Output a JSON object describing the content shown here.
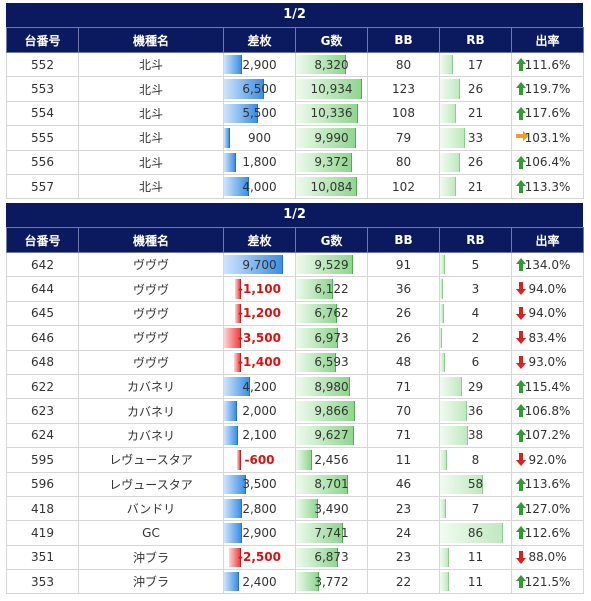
{
  "headers": [
    "台番号",
    "機種名",
    "差枚",
    "G数",
    "BB",
    "RB",
    "出率"
  ],
  "groups": [
    {
      "page_label": "1/2",
      "rows": [
        {
          "num": "552",
          "machine": "北斗",
          "diff": "2,900",
          "diff_v": 2900,
          "games": "8,320",
          "games_v": 8320,
          "bb": "80",
          "rb": "17",
          "rb_v": 17,
          "rate": "111.6%",
          "trend": "up"
        },
        {
          "num": "553",
          "machine": "北斗",
          "diff": "6,500",
          "diff_v": 6500,
          "games": "10,934",
          "games_v": 10934,
          "bb": "123",
          "rb": "26",
          "rb_v": 26,
          "rate": "119.7%",
          "trend": "up"
        },
        {
          "num": "554",
          "machine": "北斗",
          "diff": "5,500",
          "diff_v": 5500,
          "games": "10,336",
          "games_v": 10336,
          "bb": "108",
          "rb": "21",
          "rb_v": 21,
          "rate": "117.6%",
          "trend": "up"
        },
        {
          "num": "555",
          "machine": "北斗",
          "diff": "900",
          "diff_v": 900,
          "games": "9,990",
          "games_v": 9990,
          "bb": "79",
          "rb": "33",
          "rb_v": 33,
          "rate": "103.1%",
          "trend": "flat"
        },
        {
          "num": "556",
          "machine": "北斗",
          "diff": "1,800",
          "diff_v": 1800,
          "games": "9,372",
          "games_v": 9372,
          "bb": "80",
          "rb": "26",
          "rb_v": 26,
          "rate": "106.4%",
          "trend": "up"
        },
        {
          "num": "557",
          "machine": "北斗",
          "diff": "4,000",
          "diff_v": 4000,
          "games": "10,084",
          "games_v": 10084,
          "bb": "102",
          "rb": "21",
          "rb_v": 21,
          "rate": "113.3%",
          "trend": "up"
        }
      ]
    },
    {
      "page_label": "1/2",
      "rows": [
        {
          "num": "642",
          "machine": "ヴヴヴ",
          "diff": "9,700",
          "diff_v": 9700,
          "games": "9,529",
          "games_v": 9529,
          "bb": "91",
          "rb": "5",
          "rb_v": 5,
          "rate": "134.0%",
          "trend": "up"
        },
        {
          "num": "644",
          "machine": "ヴヴヴ",
          "diff": "-1,100",
          "diff_v": -1100,
          "games": "6,122",
          "games_v": 6122,
          "bb": "36",
          "rb": "3",
          "rb_v": 3,
          "rate": "94.0%",
          "trend": "down"
        },
        {
          "num": "645",
          "machine": "ヴヴヴ",
          "diff": "-1,200",
          "diff_v": -1200,
          "games": "6,762",
          "games_v": 6762,
          "bb": "26",
          "rb": "4",
          "rb_v": 4,
          "rate": "94.0%",
          "trend": "down"
        },
        {
          "num": "646",
          "machine": "ヴヴヴ",
          "diff": "-3,500",
          "diff_v": -3500,
          "games": "6,973",
          "games_v": 6973,
          "bb": "26",
          "rb": "2",
          "rb_v": 2,
          "rate": "83.4%",
          "trend": "down"
        },
        {
          "num": "648",
          "machine": "ヴヴヴ",
          "diff": "-1,400",
          "diff_v": -1400,
          "games": "6,593",
          "games_v": 6593,
          "bb": "48",
          "rb": "6",
          "rb_v": 6,
          "rate": "93.0%",
          "trend": "down"
        },
        {
          "num": "622",
          "machine": "カバネリ",
          "diff": "4,200",
          "diff_v": 4200,
          "games": "8,980",
          "games_v": 8980,
          "bb": "71",
          "rb": "29",
          "rb_v": 29,
          "rate": "115.4%",
          "trend": "up"
        },
        {
          "num": "623",
          "machine": "カバネリ",
          "diff": "2,000",
          "diff_v": 2000,
          "games": "9,866",
          "games_v": 9866,
          "bb": "70",
          "rb": "36",
          "rb_v": 36,
          "rate": "106.8%",
          "trend": "up"
        },
        {
          "num": "624",
          "machine": "カバネリ",
          "diff": "2,100",
          "diff_v": 2100,
          "games": "9,627",
          "games_v": 9627,
          "bb": "71",
          "rb": "38",
          "rb_v": 38,
          "rate": "107.2%",
          "trend": "up"
        },
        {
          "num": "595",
          "machine": "レヴュースタア",
          "diff": "-600",
          "diff_v": -600,
          "games": "2,456",
          "games_v": 2456,
          "bb": "11",
          "rb": "8",
          "rb_v": 8,
          "rate": "92.0%",
          "trend": "down"
        },
        {
          "num": "596",
          "machine": "レヴュースタア",
          "diff": "3,500",
          "diff_v": 3500,
          "games": "8,701",
          "games_v": 8701,
          "bb": "46",
          "rb": "58",
          "rb_v": 58,
          "rate": "113.6%",
          "trend": "up"
        },
        {
          "num": "418",
          "machine": "バンドリ",
          "diff": "2,800",
          "diff_v": 2800,
          "games": "3,490",
          "games_v": 3490,
          "bb": "23",
          "rb": "7",
          "rb_v": 7,
          "rate": "127.0%",
          "trend": "up"
        },
        {
          "num": "419",
          "machine": "GC",
          "diff": "2,900",
          "diff_v": 2900,
          "games": "7,741",
          "games_v": 7741,
          "bb": "24",
          "rb": "86",
          "rb_v": 86,
          "rate": "112.6%",
          "trend": "up"
        },
        {
          "num": "351",
          "machine": "沖ブラ",
          "diff": "-2,500",
          "diff_v": -2500,
          "games": "6,873",
          "games_v": 6873,
          "bb": "23",
          "rb": "11",
          "rb_v": 11,
          "rate": "88.0%",
          "trend": "down"
        },
        {
          "num": "353",
          "machine": "沖ブラ",
          "diff": "2,400",
          "diff_v": 2400,
          "games": "3,772",
          "games_v": 3772,
          "bb": "22",
          "rb": "11",
          "rb_v": 11,
          "rate": "121.5%",
          "trend": "up"
        }
      ]
    }
  ],
  "colors": {
    "header_bg": "#0b1a5e",
    "arrow_up": "#2e9e2e",
    "arrow_down": "#e02020",
    "arrow_flat": "#f0a020",
    "negative_text": "#e01010"
  }
}
